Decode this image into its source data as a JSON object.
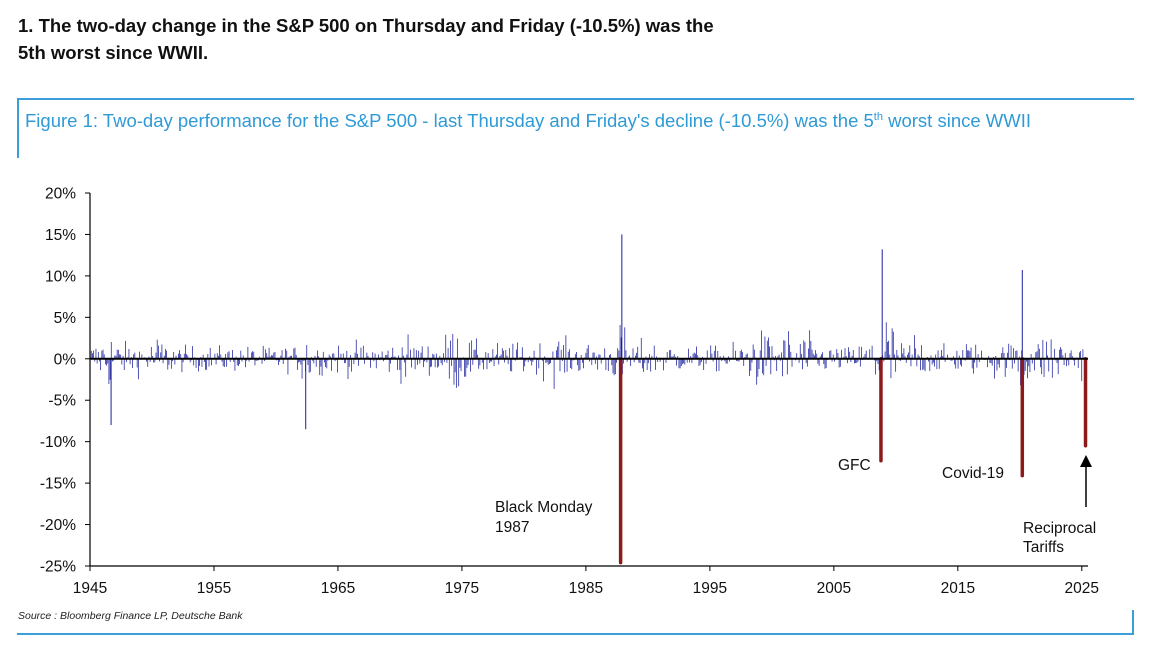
{
  "headline": {
    "line1": "1. The two-day change in the S&P 500 on Thursday and Friday (-10.5%) was the",
    "line2": "5th worst since WWII."
  },
  "figure": {
    "title_part1": "Figure 1: Two-day performance for the S&P 500 - last Thursday and Friday's decline (-10.5%) was the 5",
    "title_sup": "th",
    "title_part2": " worst since WWII",
    "source": "Source : Bloomberg Finance LP, Deutsche Bank"
  },
  "colors": {
    "series": "#1a1f9c",
    "highlight": "#8b1a1a",
    "accent": "#2e9ad6"
  },
  "chart_data": {
    "type": "bar",
    "title": "Two-day performance for the S&P 500",
    "xlabel": "",
    "ylabel": "",
    "xlim": [
      1945,
      2025.5
    ],
    "ylim": [
      -25,
      20
    ],
    "yticks": [
      20,
      15,
      10,
      5,
      0,
      -5,
      -10,
      -15,
      -20,
      -25
    ],
    "ytick_labels": [
      "20%",
      "15%",
      "10%",
      "5%",
      "0%",
      "-5%",
      "-10%",
      "-15%",
      "-20%",
      "-25%"
    ],
    "xticks": [
      1945,
      1955,
      1965,
      1975,
      1985,
      1995,
      2005,
      2015,
      2025
    ],
    "xtick_labels": [
      "1945",
      "1955",
      "1965",
      "1975",
      "1985",
      "1995",
      "2005",
      "2015",
      "2025"
    ],
    "series_description": "Daily two-day % change, S&P 500 (dense blue bars)",
    "notable_spikes": [
      {
        "x": 1946.7,
        "y": -8.0
      },
      {
        "x": 1962.4,
        "y": -8.5
      },
      {
        "x": 1987.9,
        "y": 15.0
      },
      {
        "x": 2008.9,
        "y": 13.2
      },
      {
        "x": 2020.2,
        "y": 10.7
      }
    ],
    "highlights": [
      {
        "label": "Black Monday 1987",
        "x": 1987.8,
        "value": -24.6
      },
      {
        "label": "GFC",
        "x": 2008.8,
        "value": -12.3
      },
      {
        "label": "Covid-19",
        "x": 2020.2,
        "value": -14.1
      },
      {
        "label": "Reciprocal Tariffs",
        "x": 2025.3,
        "value": -10.5
      }
    ],
    "annotations": {
      "black_monday_line1": "Black Monday",
      "black_monday_line2": "1987",
      "gfc": "GFC",
      "covid": "Covid-19",
      "tariffs_line1": "Reciprocal",
      "tariffs_line2": "Tariffs"
    }
  }
}
